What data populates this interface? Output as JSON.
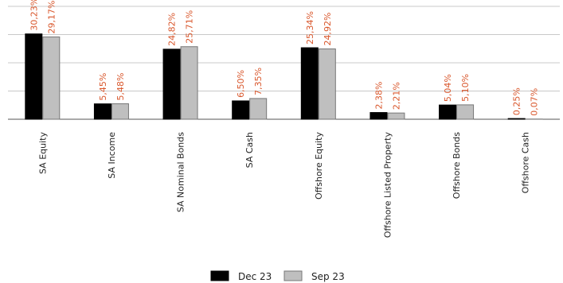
{
  "chart_data": {
    "type": "bar",
    "categories": [
      "SA Equity",
      "SA Income",
      "SA Nominal Bonds",
      "SA Cash",
      "Offshore Equity",
      "Offshore Listed Property",
      "Offshore Bonds",
      "Offshore Cash"
    ],
    "series": [
      {
        "name": "Dec 23",
        "color": "#000000",
        "values": [
          30.23,
          5.45,
          24.82,
          6.5,
          25.34,
          2.38,
          5.04,
          0.25
        ],
        "labels": [
          "30,23%",
          "5,45%",
          "24,82%",
          "6,50%",
          "25,34%",
          "2,38%",
          "5,04%",
          "0,25%"
        ]
      },
      {
        "name": "Sep 23",
        "color": "#bfbfbf",
        "values": [
          29.17,
          5.48,
          25.71,
          7.35,
          24.92,
          2.21,
          5.1,
          0.07
        ],
        "labels": [
          "29,17%",
          "5,48%",
          "25,71%",
          "7,35%",
          "24,92%",
          "2,21%",
          "5,10%",
          "0,07%"
        ]
      }
    ],
    "ylim": [
      0,
      40
    ],
    "grid": true,
    "legend_position": "bottom-center",
    "label_color": "#d9572c"
  }
}
